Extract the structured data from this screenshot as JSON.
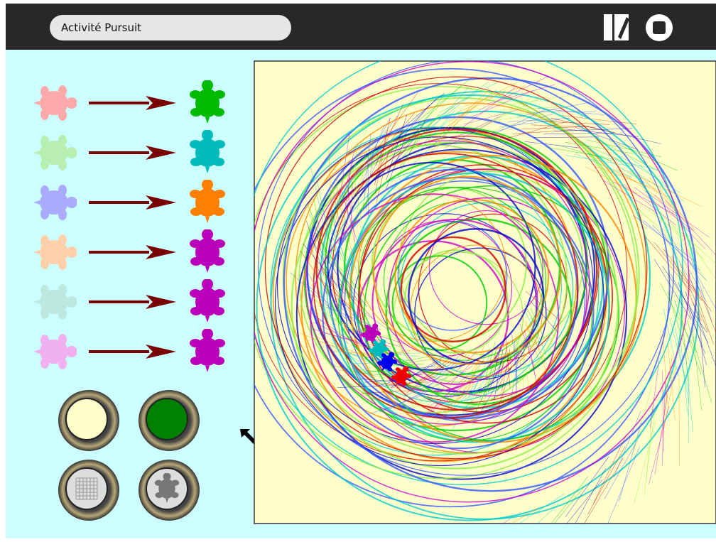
{
  "header": {
    "title": "Activité Pursuit"
  }
}
